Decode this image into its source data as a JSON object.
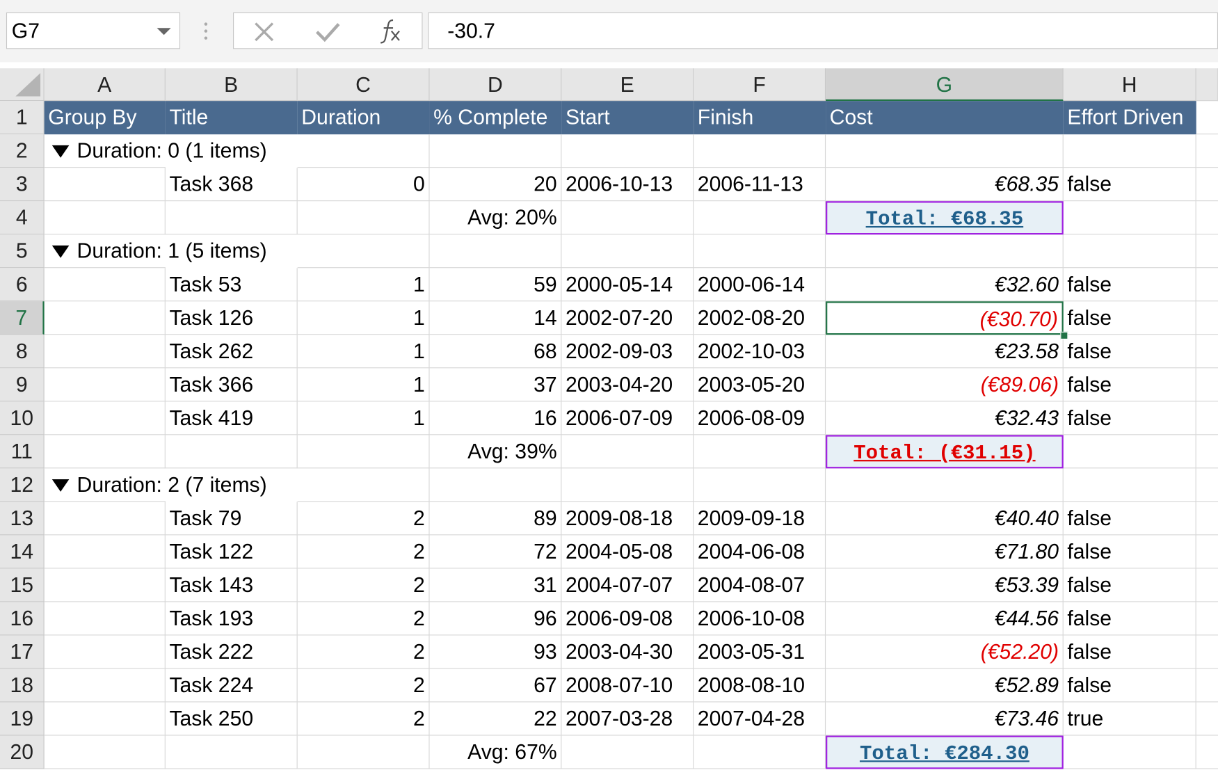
{
  "name_box": "G7",
  "formula": "-30.7",
  "columns": [
    "A",
    "B",
    "C",
    "D",
    "E",
    "F",
    "G",
    "H"
  ],
  "rows": [
    {
      "num": "1",
      "cells": [
        "Group By",
        "Title",
        "Duration",
        "% Complete",
        "Start",
        "Finish",
        "Cost",
        "Effort Driven"
      ]
    },
    {
      "num": "2",
      "cells": [
        "Duration: 0 (1 items)",
        null,
        null,
        null,
        null,
        null,
        null,
        null
      ]
    },
    {
      "num": "3",
      "cells": [
        null,
        "Task 368",
        "0",
        "20",
        "2006-10-13",
        "2006-11-13",
        "€68.35",
        "false"
      ]
    },
    {
      "num": "4",
      "cells": [
        null,
        null,
        null,
        "Avg: 20%",
        null,
        null,
        "Total: €68.35",
        null
      ]
    },
    {
      "num": "5",
      "cells": [
        "Duration: 1 (5 items)",
        null,
        null,
        null,
        null,
        null,
        null,
        null
      ]
    },
    {
      "num": "6",
      "cells": [
        null,
        "Task 53",
        "1",
        "59",
        "2000-05-14",
        "2000-06-14",
        "€32.60",
        "false"
      ]
    },
    {
      "num": "7",
      "cells": [
        null,
        "Task 126",
        "1",
        "14",
        "2002-07-20",
        "2002-08-20",
        "(€30.70)",
        "false"
      ]
    },
    {
      "num": "8",
      "cells": [
        null,
        "Task 262",
        "1",
        "68",
        "2002-09-03",
        "2002-10-03",
        "€23.58",
        "false"
      ]
    },
    {
      "num": "9",
      "cells": [
        null,
        "Task 366",
        "1",
        "37",
        "2003-04-20",
        "2003-05-20",
        "(€89.06)",
        "false"
      ]
    },
    {
      "num": "10",
      "cells": [
        null,
        "Task 419",
        "1",
        "16",
        "2006-07-09",
        "2006-08-09",
        "€32.43",
        "false"
      ]
    },
    {
      "num": "11",
      "cells": [
        null,
        null,
        null,
        "Avg: 39%",
        null,
        null,
        "Total: (€31.15)",
        null
      ]
    },
    {
      "num": "12",
      "cells": [
        "Duration: 2 (7 items)",
        null,
        null,
        null,
        null,
        null,
        null,
        null
      ]
    },
    {
      "num": "13",
      "cells": [
        null,
        "Task 79",
        "2",
        "89",
        "2009-08-18",
        "2009-09-18",
        "€40.40",
        "false"
      ]
    },
    {
      "num": "14",
      "cells": [
        null,
        "Task 122",
        "2",
        "72",
        "2004-05-08",
        "2004-06-08",
        "€71.80",
        "false"
      ]
    },
    {
      "num": "15",
      "cells": [
        null,
        "Task 143",
        "2",
        "31",
        "2004-07-07",
        "2004-08-07",
        "€53.39",
        "false"
      ]
    },
    {
      "num": "16",
      "cells": [
        null,
        "Task 193",
        "2",
        "96",
        "2006-09-08",
        "2006-10-08",
        "€44.56",
        "false"
      ]
    },
    {
      "num": "17",
      "cells": [
        null,
        "Task 222",
        "2",
        "93",
        "2003-04-30",
        "2003-05-31",
        "(€52.20)",
        "false"
      ]
    },
    {
      "num": "18",
      "cells": [
        null,
        "Task 224",
        "2",
        "67",
        "2008-07-10",
        "2008-08-10",
        "€52.89",
        "false"
      ]
    },
    {
      "num": "19",
      "cells": [
        null,
        "Task 250",
        "2",
        "22",
        "2007-03-28",
        "2007-04-28",
        "€73.46",
        "true"
      ]
    },
    {
      "num": "20",
      "cells": [
        null,
        null,
        null,
        "Avg: 67%",
        null,
        null,
        "Total: €284.30",
        null
      ]
    }
  ]
}
